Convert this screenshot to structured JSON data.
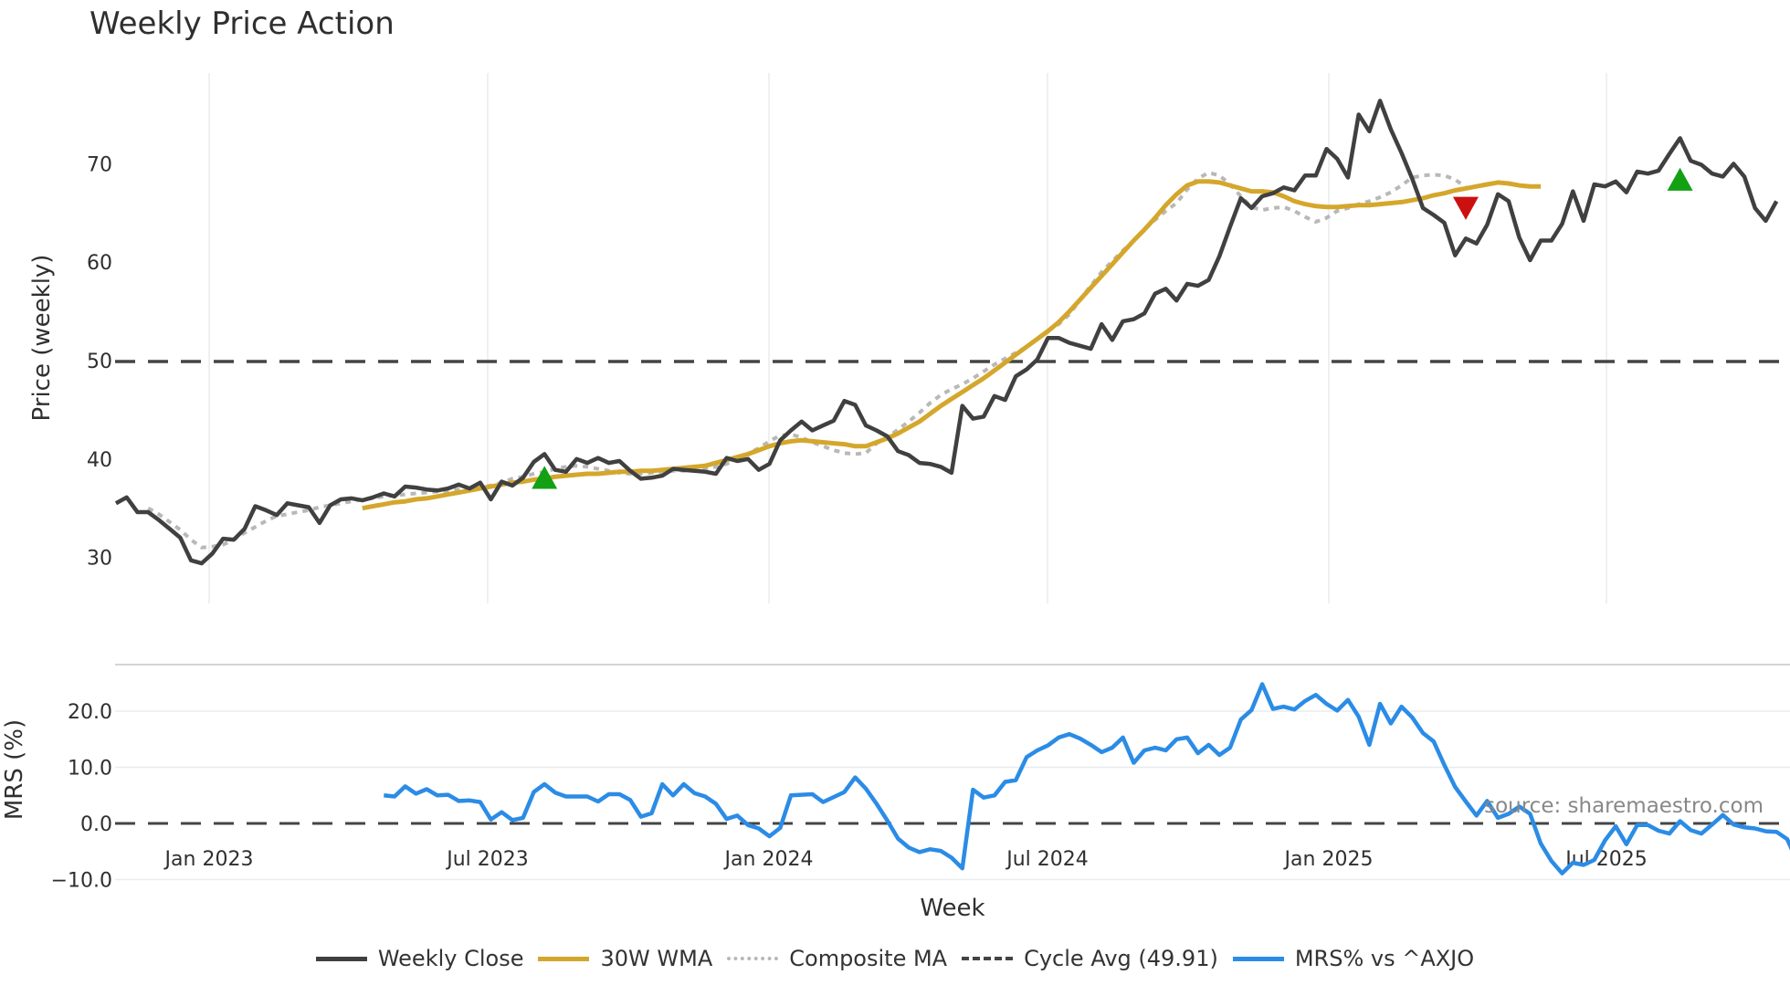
{
  "title": "Weekly Price Action",
  "price_panel": {
    "ylabel": "Price (weekly)",
    "yticks": [
      "30",
      "40",
      "50",
      "60",
      "70"
    ]
  },
  "mrs_panel": {
    "ylabel": "MRS (%)",
    "yticks": [
      "−10.0",
      "0.0",
      "10.0",
      "20.0"
    ]
  },
  "xaxis": {
    "label": "Week",
    "ticks": [
      "Jan 2023",
      "Jul 2023",
      "Jan 2024",
      "Jul 2024",
      "Jan 2025",
      "Jul 2025"
    ]
  },
  "source": "source: sharemaestro.com",
  "legend": [
    {
      "label": "Weekly Close",
      "color": "#404040",
      "style": "solid"
    },
    {
      "label": "30W WMA",
      "color": "#d4a72c",
      "style": "solid"
    },
    {
      "label": "Composite MA",
      "color": "#b8b8b8",
      "style": "dotted"
    },
    {
      "label": "Cycle Avg (49.91)",
      "color": "#444444",
      "style": "dashed"
    },
    {
      "label": "MRS% vs ^AXJO",
      "color": "#2b8ce6",
      "style": "solid"
    }
  ],
  "colors": {
    "close": "#404040",
    "wma": "#d4a72c",
    "composite": "#b8b8b8",
    "cycle": "#444444",
    "mrs": "#2b8ce6",
    "buy": "#13a013",
    "sell": "#cc1010",
    "grid": "#e8ecef"
  },
  "chart_data": [
    {
      "type": "line",
      "title": "Weekly Price Action",
      "xlabel": "Week",
      "ylabel": "Price (weekly)",
      "ylim": [
        26.5,
        78
      ],
      "x_ticks": [
        "Jan 2023",
        "Jul 2023",
        "Jan 2024",
        "Jul 2024",
        "Jan 2025",
        "Jul 2025"
      ],
      "x_start": "Nov 2022",
      "x_end": "Oct 2025",
      "grid": true,
      "legend_position": "bottom",
      "cycle_avg": 49.91,
      "series": [
        {
          "name": "Weekly Close",
          "start_index": 0,
          "values": [
            35.5,
            36.1,
            34.6,
            34.6,
            33.8,
            32.9,
            32.0,
            29.7,
            29.4,
            30.4,
            31.9,
            31.8,
            32.9,
            35.2,
            34.8,
            34.3,
            35.5,
            35.3,
            35.1,
            33.5,
            35.3,
            35.9,
            36.0,
            35.8,
            36.1,
            36.5,
            36.2,
            37.2,
            37.1,
            36.9,
            36.8,
            37.0,
            37.4,
            37.0,
            37.6,
            35.9,
            37.7,
            37.3,
            38.1,
            39.7,
            40.5,
            38.9,
            38.7,
            40.0,
            39.6,
            40.1,
            39.6,
            39.8,
            38.8,
            38.0,
            38.1,
            38.3,
            39.0,
            38.9,
            38.8,
            38.7,
            38.5,
            40.1,
            39.8,
            40.0,
            38.9,
            39.5,
            41.9,
            42.9,
            43.8,
            42.9,
            43.4,
            43.9,
            45.9,
            45.5,
            43.4,
            42.9,
            42.3,
            40.8,
            40.4,
            39.6,
            39.5,
            39.2,
            38.6,
            45.4,
            44.1,
            44.3,
            46.4,
            46.0,
            48.4,
            49.1,
            50.1,
            52.3,
            52.3,
            51.8,
            51.5,
            51.2,
            53.7,
            52.1,
            54.0,
            54.2,
            54.8,
            56.8,
            57.3,
            56.1,
            57.8,
            57.6,
            58.2,
            60.6,
            63.6,
            66.5,
            65.5,
            66.7,
            67.0,
            67.6,
            67.3,
            68.8,
            68.8,
            71.5,
            70.5,
            68.6,
            75.0,
            73.3,
            76.4,
            73.5,
            71.1,
            68.5,
            65.5,
            64.8,
            64.0,
            60.7,
            62.4,
            61.9,
            63.8,
            66.9,
            66.2,
            62.5,
            60.2,
            62.2,
            62.2,
            63.9,
            67.2,
            64.2,
            67.9,
            67.7,
            68.2,
            67.1,
            69.2,
            69.0,
            69.3,
            71.0,
            72.6,
            70.3,
            69.9,
            69.0,
            68.7,
            70.0,
            68.7,
            65.5,
            64.2,
            66.2
          ]
        },
        {
          "name": "30W WMA",
          "start_index": 23,
          "values": [
            35.0,
            35.2,
            35.4,
            35.6,
            35.7,
            35.9,
            36.0,
            36.2,
            36.4,
            36.6,
            36.8,
            37.0,
            37.2,
            37.4,
            37.6,
            37.7,
            37.9,
            38.0,
            38.2,
            38.3,
            38.4,
            38.5,
            38.5,
            38.6,
            38.7,
            38.7,
            38.8,
            38.8,
            38.9,
            39.0,
            39.1,
            39.2,
            39.3,
            39.6,
            39.9,
            40.2,
            40.5,
            40.9,
            41.3,
            41.6,
            41.8,
            41.9,
            41.8,
            41.7,
            41.6,
            41.5,
            41.3,
            41.3,
            41.7,
            42.1,
            42.6,
            43.2,
            43.8,
            44.6,
            45.4,
            46.1,
            46.8,
            47.5,
            48.2,
            49.0,
            49.8,
            50.6,
            51.4,
            52.2,
            53.0,
            53.9,
            55.0,
            56.2,
            57.4,
            58.6,
            59.8,
            61.0,
            62.2,
            63.3,
            64.5,
            65.8,
            66.9,
            67.8,
            68.2,
            68.2,
            68.1,
            67.8,
            67.5,
            67.2,
            67.2,
            67.1,
            66.7,
            66.2,
            65.9,
            65.7,
            65.6,
            65.6,
            65.7,
            65.8,
            65.8,
            65.9,
            66.0,
            66.1,
            66.3,
            66.5,
            66.8,
            67.0,
            67.3,
            67.5,
            67.7,
            67.9,
            68.1,
            68.0,
            67.8,
            67.7,
            67.7
          ]
        },
        {
          "name": "Composite MA",
          "start_index": 3,
          "values": [
            35.0,
            34.4,
            33.6,
            32.8,
            31.8,
            31.0,
            31.1,
            31.3,
            31.8,
            32.5,
            33.1,
            33.7,
            34.2,
            34.4,
            34.6,
            34.8,
            35.1,
            35.3,
            35.5,
            35.7,
            35.9,
            36.0,
            36.2,
            36.3,
            36.4,
            36.5,
            36.6,
            36.7,
            36.8,
            36.9,
            36.9,
            37.1,
            37.3,
            37.6,
            38.0,
            38.2,
            38.5,
            38.7,
            39.0,
            39.2,
            39.3,
            39.2,
            39.0,
            38.8,
            38.6,
            38.5,
            38.5,
            38.6,
            38.7,
            38.8,
            38.8,
            38.9,
            39.0,
            39.2,
            39.5,
            40.0,
            40.5,
            41.1,
            41.8,
            42.4,
            42.5,
            42.2,
            41.7,
            41.3,
            40.9,
            40.6,
            40.5,
            40.6,
            41.6,
            42.2,
            43.0,
            43.8,
            44.7,
            45.7,
            46.5,
            47.1,
            47.6,
            48.2,
            48.9,
            49.6,
            50.2,
            50.8,
            51.4,
            52.2,
            53.0,
            53.7,
            54.7,
            56.2,
            57.6,
            59.0,
            60.1,
            61.2,
            62.2,
            63.3,
            64.3,
            65.2,
            66.0,
            67.4,
            68.5,
            69.1,
            68.8,
            67.9,
            66.7,
            65.6,
            65.3,
            65.5,
            65.6,
            65.2,
            64.6,
            64.1,
            64.5,
            65.2,
            65.5,
            65.9,
            66.2,
            66.6,
            67.1,
            67.8,
            68.6,
            68.8,
            68.9,
            68.8,
            68.4,
            67.6
          ]
        },
        {
          "name": "Cycle Avg (49.91)",
          "values": [
            49.91
          ]
        }
      ],
      "markers": [
        {
          "type": "buy",
          "shape": "triangle-up",
          "index": 40,
          "y": 38.0
        },
        {
          "type": "sell",
          "shape": "triangle-down",
          "index": 126,
          "y": 65.6
        },
        {
          "type": "buy",
          "shape": "triangle-up",
          "index": 146,
          "y": 68.3
        }
      ]
    },
    {
      "type": "line",
      "title": "",
      "ylabel": "MRS (%)",
      "ylim": [
        -13,
        26
      ],
      "grid": true,
      "series": [
        {
          "name": "MRS% vs ^AXJO",
          "start_index": 25,
          "values": [
            5.0,
            4.8,
            6.6,
            5.3,
            6.1,
            5.0,
            5.1,
            4.0,
            4.1,
            3.8,
            0.7,
            2.0,
            0.6,
            1.0,
            5.6,
            7.0,
            5.5,
            4.8,
            4.8,
            4.8,
            3.9,
            5.2,
            5.2,
            4.2,
            1.2,
            1.8,
            7.0,
            5.0,
            7.0,
            5.4,
            4.8,
            3.5,
            0.8,
            1.4,
            -0.3,
            -0.9,
            -2.3,
            -0.8,
            5.0,
            5.1,
            5.2,
            3.8,
            4.7,
            5.6,
            8.2,
            6.2,
            3.5,
            0.5,
            -2.7,
            -4.3,
            -5.1,
            -4.6,
            -4.9,
            -6.1,
            -8.0,
            6.0,
            4.6,
            5.0,
            7.4,
            7.7,
            11.8,
            13.0,
            13.9,
            15.3,
            15.9,
            15.1,
            14.0,
            12.7,
            13.5,
            15.3,
            10.8,
            13.0,
            13.5,
            13.0,
            15.0,
            15.3,
            12.5,
            14.0,
            12.2,
            13.5,
            18.5,
            20.2,
            24.8,
            20.4,
            20.8,
            20.3,
            21.8,
            22.9,
            21.3,
            20.1,
            22.0,
            19.0,
            14.0,
            21.3,
            17.8,
            20.8,
            18.9,
            16.1,
            14.6,
            10.4,
            6.5,
            3.9,
            1.4,
            4.0,
            1.0,
            1.7,
            3.0,
            1.7,
            -3.6,
            -6.7,
            -8.9,
            -7.0,
            -7.4,
            -6.5,
            -3.0,
            -0.5,
            -3.7,
            -0.3,
            -0.3,
            -1.3,
            -1.8,
            0.4,
            -1.2,
            -1.8,
            -0.2,
            1.5,
            -0.2,
            -0.7,
            -0.9,
            -1.4,
            -1.5,
            -2.8,
            -7.0,
            -10.5,
            -6.0
          ]
        },
        {
          "name": "Zero line",
          "values": [
            0.0
          ]
        }
      ]
    }
  ]
}
